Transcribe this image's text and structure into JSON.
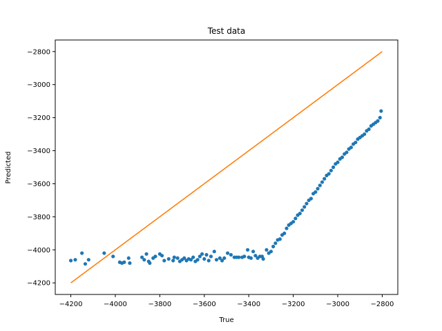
{
  "chart_data": {
    "type": "scatter",
    "title": "Test data",
    "xlabel": "True",
    "ylabel": "Predicted",
    "xlim": [
      -4270,
      -2730
    ],
    "ylim": [
      -4270,
      -2730
    ],
    "xticks": [
      -4200,
      -4000,
      -3800,
      -3600,
      -3400,
      -3200,
      -3000,
      -2800
    ],
    "yticks": [
      -4200,
      -4000,
      -3800,
      -3600,
      -3400,
      -3200,
      -3000,
      -2800
    ],
    "grid": false,
    "colors": {
      "scatter": "#1f77b4",
      "line": "#ff7f0e"
    },
    "series": [
      {
        "kind": "scatter",
        "points": [
          [
            -4200,
            -4065
          ],
          [
            -4180,
            -4060
          ],
          [
            -4150,
            -4020
          ],
          [
            -4135,
            -4085
          ],
          [
            -4120,
            -4060
          ],
          [
            -4050,
            -4020
          ],
          [
            -4010,
            -4040
          ],
          [
            -3980,
            -4075
          ],
          [
            -3970,
            -4080
          ],
          [
            -3960,
            -4075
          ],
          [
            -3940,
            -4050
          ],
          [
            -3935,
            -4080
          ],
          [
            -3880,
            -4045
          ],
          [
            -3870,
            -4060
          ],
          [
            -3860,
            -4025
          ],
          [
            -3850,
            -4070
          ],
          [
            -3845,
            -4080
          ],
          [
            -3830,
            -4050
          ],
          [
            -3820,
            -4040
          ],
          [
            -3800,
            -4025
          ],
          [
            -3790,
            -4035
          ],
          [
            -3780,
            -4065
          ],
          [
            -3760,
            -4055
          ],
          [
            -3740,
            -4065
          ],
          [
            -3735,
            -4045
          ],
          [
            -3720,
            -4050
          ],
          [
            -3710,
            -4070
          ],
          [
            -3700,
            -4060
          ],
          [
            -3690,
            -4050
          ],
          [
            -3680,
            -4065
          ],
          [
            -3670,
            -4055
          ],
          [
            -3660,
            -4060
          ],
          [
            -3650,
            -4045
          ],
          [
            -3640,
            -4070
          ],
          [
            -3630,
            -4060
          ],
          [
            -3620,
            -4040
          ],
          [
            -3610,
            -4025
          ],
          [
            -3600,
            -4055
          ],
          [
            -3590,
            -4030
          ],
          [
            -3580,
            -4065
          ],
          [
            -3570,
            -4040
          ],
          [
            -3555,
            -4010
          ],
          [
            -3545,
            -4060
          ],
          [
            -3530,
            -4050
          ],
          [
            -3520,
            -4065
          ],
          [
            -3510,
            -4050
          ],
          [
            -3495,
            -4020
          ],
          [
            -3480,
            -4030
          ],
          [
            -3465,
            -4045
          ],
          [
            -3455,
            -4045
          ],
          [
            -3445,
            -4045
          ],
          [
            -3430,
            -4045
          ],
          [
            -3420,
            -4040
          ],
          [
            -3405,
            -4000
          ],
          [
            -3400,
            -4045
          ],
          [
            -3390,
            -4050
          ],
          [
            -3380,
            -4010
          ],
          [
            -3370,
            -4035
          ],
          [
            -3360,
            -4050
          ],
          [
            -3350,
            -4040
          ],
          [
            -3340,
            -4040
          ],
          [
            -3335,
            -4055
          ],
          [
            -3320,
            -4000
          ],
          [
            -3310,
            -4020
          ],
          [
            -3300,
            -4010
          ],
          [
            -3290,
            -3980
          ],
          [
            -3280,
            -3960
          ],
          [
            -3270,
            -3940
          ],
          [
            -3260,
            -3935
          ],
          [
            -3250,
            -3910
          ],
          [
            -3240,
            -3900
          ],
          [
            -3230,
            -3870
          ],
          [
            -3220,
            -3850
          ],
          [
            -3210,
            -3840
          ],
          [
            -3200,
            -3830
          ],
          [
            -3190,
            -3810
          ],
          [
            -3180,
            -3790
          ],
          [
            -3170,
            -3780
          ],
          [
            -3160,
            -3760
          ],
          [
            -3150,
            -3740
          ],
          [
            -3140,
            -3720
          ],
          [
            -3130,
            -3700
          ],
          [
            -3120,
            -3690
          ],
          [
            -3110,
            -3660
          ],
          [
            -3100,
            -3650
          ],
          [
            -3090,
            -3630
          ],
          [
            -3080,
            -3610
          ],
          [
            -3070,
            -3590
          ],
          [
            -3060,
            -3570
          ],
          [
            -3050,
            -3550
          ],
          [
            -3040,
            -3540
          ],
          [
            -3030,
            -3520
          ],
          [
            -3020,
            -3500
          ],
          [
            -3010,
            -3480
          ],
          [
            -3000,
            -3470
          ],
          [
            -2990,
            -3450
          ],
          [
            -2980,
            -3440
          ],
          [
            -2970,
            -3420
          ],
          [
            -2960,
            -3410
          ],
          [
            -2950,
            -3390
          ],
          [
            -2940,
            -3380
          ],
          [
            -2930,
            -3360
          ],
          [
            -2920,
            -3350
          ],
          [
            -2910,
            -3330
          ],
          [
            -2900,
            -3320
          ],
          [
            -2890,
            -3310
          ],
          [
            -2880,
            -3300
          ],
          [
            -2870,
            -3280
          ],
          [
            -2860,
            -3270
          ],
          [
            -2850,
            -3250
          ],
          [
            -2840,
            -3240
          ],
          [
            -2830,
            -3230
          ],
          [
            -2820,
            -3220
          ],
          [
            -2810,
            -3200
          ],
          [
            -2805,
            -3160
          ]
        ]
      },
      {
        "kind": "line",
        "points": [
          [
            -4200,
            -4200
          ],
          [
            -2800,
            -2800
          ]
        ]
      }
    ]
  }
}
